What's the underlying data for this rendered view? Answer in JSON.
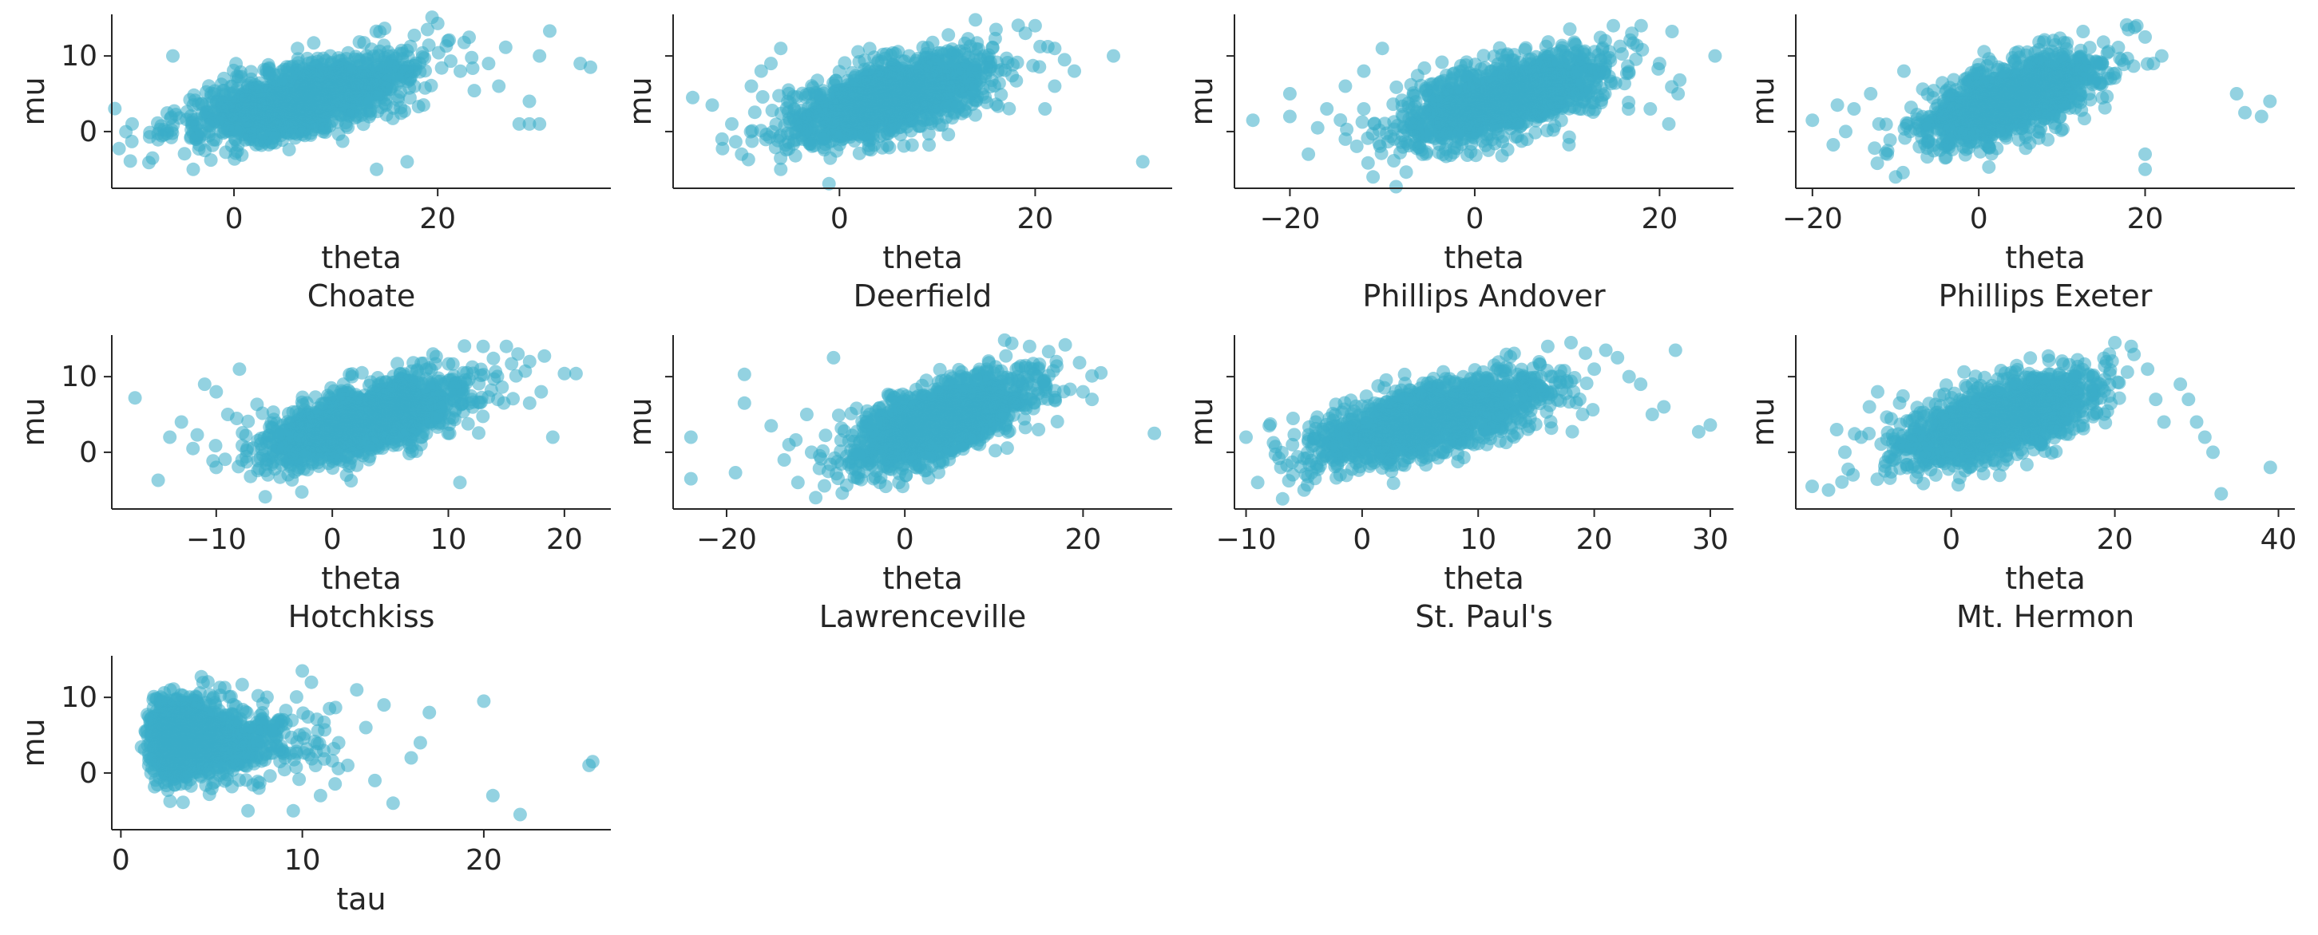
{
  "figure": {
    "point_color": "#3aadc9",
    "point_alpha": 0.55
  },
  "chart_data": [
    {
      "type": "scatter",
      "panel": "Choate",
      "xlabel": "theta",
      "subtitle": "Choate",
      "ylabel": "mu",
      "xlim": [
        -12,
        37
      ],
      "ylim": [
        -7.5,
        15.5
      ],
      "xticks": [
        0,
        20
      ],
      "yticks": [
        0,
        10
      ],
      "seed": 1,
      "n": 1500,
      "slope": 0.33,
      "xcenter": 6.5,
      "xspread": 5.5,
      "ycenter": 4.3,
      "yspread": 2.3,
      "outliers": [
        [
          -10,
          1
        ],
        [
          -8,
          -3.5
        ],
        [
          -6,
          10
        ],
        [
          -4,
          -5
        ],
        [
          -4,
          3.5
        ],
        [
          25,
          9
        ],
        [
          26,
          6
        ],
        [
          28,
          1
        ],
        [
          29,
          1
        ],
        [
          29,
          4
        ],
        [
          30,
          1
        ],
        [
          30,
          10
        ],
        [
          31,
          13.3
        ],
        [
          34,
          9
        ],
        [
          35,
          8.5
        ],
        [
          20,
          14.3
        ],
        [
          19,
          13.5
        ],
        [
          21,
          12
        ],
        [
          17,
          -4
        ],
        [
          14,
          -5
        ]
      ]
    },
    {
      "type": "scatter",
      "panel": "Deerfield",
      "xlabel": "theta",
      "subtitle": "Deerfield",
      "ylabel": "mu",
      "xlim": [
        -17,
        34
      ],
      "ylim": [
        -7.5,
        15.5
      ],
      "xticks": [
        0,
        20
      ],
      "yticks": [
        0,
        10
      ],
      "seed": 2,
      "n": 1500,
      "slope": 0.35,
      "xcenter": 5,
      "xspread": 5,
      "ycenter": 4.3,
      "yspread": 2.3,
      "outliers": [
        [
          -15,
          4.5
        ],
        [
          -11,
          1
        ],
        [
          -10,
          -3
        ],
        [
          -9,
          6
        ],
        [
          -8,
          8
        ],
        [
          -7,
          9
        ],
        [
          -6,
          11
        ],
        [
          -6,
          -5
        ],
        [
          31,
          -4
        ],
        [
          28,
          10
        ],
        [
          24,
          8
        ],
        [
          23,
          9.5
        ],
        [
          22,
          11
        ],
        [
          20,
          14
        ],
        [
          19,
          13
        ],
        [
          16,
          13.5
        ],
        [
          21,
          3
        ],
        [
          22,
          6
        ],
        [
          -12,
          -1
        ],
        [
          -13,
          3.5
        ]
      ]
    },
    {
      "type": "scatter",
      "panel": "Phillips Andover",
      "xlabel": "theta",
      "subtitle": "Phillips Andover",
      "ylabel": "mu",
      "xlim": [
        -26,
        28
      ],
      "ylim": [
        -7.5,
        15.5
      ],
      "xticks": [
        -20,
        0,
        20
      ],
      "yticks": [
        0,
        10
      ],
      "seed": 3,
      "n": 1500,
      "slope": 0.33,
      "xcenter": 3,
      "xspread": 5.5,
      "ycenter": 4.3,
      "yspread": 2.3,
      "outliers": [
        [
          -24,
          1.5
        ],
        [
          -20,
          5
        ],
        [
          -20,
          2
        ],
        [
          -18,
          -3
        ],
        [
          -17,
          0.5
        ],
        [
          -16,
          3
        ],
        [
          -14,
          6
        ],
        [
          -14,
          -1
        ],
        [
          -12,
          8
        ],
        [
          -12,
          3
        ],
        [
          -11,
          -6
        ],
        [
          26,
          10
        ],
        [
          22,
          5
        ],
        [
          20,
          9
        ],
        [
          21,
          1
        ],
        [
          19,
          3
        ],
        [
          17,
          13
        ],
        [
          18,
          14
        ],
        [
          15,
          14
        ],
        [
          -10,
          11
        ]
      ]
    },
    {
      "type": "scatter",
      "panel": "Phillips Exeter",
      "xlabel": "theta",
      "subtitle": "Phillips Exeter",
      "ylabel": "mu",
      "xlim": [
        -22,
        38
      ],
      "ylim": [
        -7.5,
        15.5
      ],
      "xticks": [
        -20,
        0,
        20
      ],
      "yticks": [
        0,
        10
      ],
      "seed": 4,
      "n": 1500,
      "slope": 0.35,
      "xcenter": 4,
      "xspread": 5,
      "ycenter": 4.3,
      "yspread": 2.3,
      "outliers": [
        [
          -20,
          1.5
        ],
        [
          -17,
          3.5
        ],
        [
          -16,
          0
        ],
        [
          -15,
          3
        ],
        [
          -13,
          5
        ],
        [
          -12,
          1
        ],
        [
          -11,
          -3
        ],
        [
          -10,
          -6
        ],
        [
          -9,
          8
        ],
        [
          31,
          5
        ],
        [
          32,
          2.5
        ],
        [
          34,
          2
        ],
        [
          35,
          4
        ],
        [
          21,
          9
        ],
        [
          22,
          10
        ],
        [
          20,
          12.5
        ],
        [
          19,
          14
        ],
        [
          18,
          13.5
        ],
        [
          20,
          -3
        ],
        [
          20,
          -5
        ]
      ]
    },
    {
      "type": "scatter",
      "panel": "Hotchkiss",
      "xlabel": "theta",
      "subtitle": "Hotchkiss",
      "ylabel": "mu",
      "xlim": [
        -19,
        24
      ],
      "ylim": [
        -7.5,
        15.5
      ],
      "xticks": [
        -10,
        0,
        10,
        20
      ],
      "yticks": [
        0,
        10
      ],
      "seed": 5,
      "n": 1500,
      "slope": 0.4,
      "xcenter": 3,
      "xspread": 4.2,
      "ycenter": 4.3,
      "yspread": 2.3,
      "outliers": [
        [
          -17,
          7.2
        ],
        [
          -15,
          -3.7
        ],
        [
          -14,
          2
        ],
        [
          -13,
          4
        ],
        [
          -12,
          0.5
        ],
        [
          -11,
          9
        ],
        [
          -10,
          8
        ],
        [
          -10,
          -2
        ],
        [
          -9,
          5
        ],
        [
          21,
          10.4
        ],
        [
          20,
          10.4
        ],
        [
          18,
          8
        ],
        [
          17,
          6.5
        ],
        [
          17,
          12
        ],
        [
          16,
          13
        ],
        [
          15,
          14
        ],
        [
          19,
          2
        ],
        [
          -8,
          11
        ],
        [
          13,
          14
        ],
        [
          11,
          -4
        ]
      ]
    },
    {
      "type": "scatter",
      "panel": "Lawrenceville",
      "xlabel": "theta",
      "subtitle": "Lawrenceville",
      "ylabel": "mu",
      "xlim": [
        -26,
        30
      ],
      "ylim": [
        -7.5,
        15.5
      ],
      "xticks": [
        -20,
        0,
        20
      ],
      "yticks": [
        0,
        10
      ],
      "seed": 6,
      "n": 1500,
      "slope": 0.38,
      "xcenter": 4,
      "xspread": 5,
      "ycenter": 4.3,
      "yspread": 2.3,
      "outliers": [
        [
          -24,
          -3.5
        ],
        [
          -24,
          2
        ],
        [
          -19,
          -2.7
        ],
        [
          -18,
          10.3
        ],
        [
          -18,
          6.5
        ],
        [
          -15,
          3.5
        ],
        [
          -13,
          1
        ],
        [
          -12,
          -4
        ],
        [
          -11,
          5
        ],
        [
          -8,
          12.5
        ],
        [
          28,
          2.5
        ],
        [
          22,
          10.5
        ],
        [
          20,
          8
        ],
        [
          21,
          7
        ],
        [
          18,
          14.2
        ],
        [
          17,
          12
        ],
        [
          15,
          3
        ],
        [
          -10,
          -6
        ],
        [
          14,
          14
        ],
        [
          12,
          14.4
        ]
      ]
    },
    {
      "type": "scatter",
      "panel": "St. Paul's",
      "xlabel": "theta",
      "subtitle": "St. Paul's",
      "ylabel": "mu",
      "xlim": [
        -11,
        32
      ],
      "ylim": [
        -7.5,
        15.5
      ],
      "xticks": [
        -10,
        0,
        10,
        20,
        30
      ],
      "yticks": [
        0,
        10
      ],
      "seed": 7,
      "n": 1500,
      "slope": 0.37,
      "xcenter": 6,
      "xspread": 5,
      "ycenter": 4.3,
      "yspread": 2.3,
      "outliers": [
        [
          -10,
          2
        ],
        [
          -9,
          -4
        ],
        [
          -8,
          3.5
        ],
        [
          -7,
          -2
        ],
        [
          -6,
          1
        ],
        [
          -5,
          -5
        ],
        [
          30,
          3.6
        ],
        [
          29,
          2.7
        ],
        [
          27,
          13.5
        ],
        [
          26,
          6
        ],
        [
          25,
          5
        ],
        [
          24,
          9
        ],
        [
          23,
          10
        ],
        [
          22,
          12.5
        ],
        [
          21,
          13.5
        ],
        [
          20,
          11
        ],
        [
          19,
          5
        ],
        [
          18,
          14.5
        ],
        [
          16,
          14
        ],
        [
          -4,
          4
        ]
      ]
    },
    {
      "type": "scatter",
      "panel": "Mt. Hermon",
      "xlabel": "theta",
      "subtitle": "Mt. Hermon",
      "ylabel": "mu",
      "xlim": [
        -19,
        42
      ],
      "ylim": [
        -7.5,
        15.5
      ],
      "xticks": [
        0,
        20,
        40
      ],
      "yticks": [
        0,
        10
      ],
      "seed": 8,
      "n": 1500,
      "slope": 0.3,
      "xcenter": 6,
      "xspread": 6,
      "ycenter": 4.3,
      "yspread": 2.3,
      "outliers": [
        [
          -17,
          -4.5
        ],
        [
          -15,
          -5
        ],
        [
          -14,
          3
        ],
        [
          -13,
          0
        ],
        [
          -12,
          -3
        ],
        [
          -10,
          6
        ],
        [
          -9,
          8
        ],
        [
          39,
          -2
        ],
        [
          33,
          -5.5
        ],
        [
          32,
          0
        ],
        [
          31,
          2
        ],
        [
          30,
          4
        ],
        [
          29,
          7
        ],
        [
          28,
          9
        ],
        [
          26,
          4
        ],
        [
          25,
          7
        ],
        [
          24,
          11
        ],
        [
          22,
          14
        ],
        [
          20,
          14.5
        ],
        [
          -11,
          2
        ]
      ]
    },
    {
      "type": "scatter",
      "panel": "tau",
      "xlabel": "tau",
      "subtitle": "",
      "ylabel": "mu",
      "xlim": [
        -0.5,
        27
      ],
      "ylim": [
        -7.5,
        15.5
      ],
      "xticks": [
        0,
        10,
        20
      ],
      "yticks": [
        0,
        10
      ],
      "seed": 9,
      "n": 1500,
      "dist": "tau",
      "ycenter": 4.3,
      "yspread": 2.6,
      "outliers": [
        [
          26,
          1.5
        ],
        [
          25.8,
          1
        ],
        [
          22,
          -5.5
        ],
        [
          20.5,
          -3
        ],
        [
          20,
          9.5
        ],
        [
          17,
          8
        ],
        [
          16.5,
          4
        ],
        [
          16,
          2
        ],
        [
          15,
          -4
        ],
        [
          14.5,
          9
        ],
        [
          14,
          -1
        ],
        [
          13.5,
          6
        ],
        [
          13,
          11
        ],
        [
          12.5,
          1
        ],
        [
          12,
          4
        ],
        [
          11.5,
          8.5
        ],
        [
          11,
          -3
        ],
        [
          10.5,
          12
        ],
        [
          10,
          13.5
        ],
        [
          9.5,
          -5
        ]
      ]
    }
  ]
}
